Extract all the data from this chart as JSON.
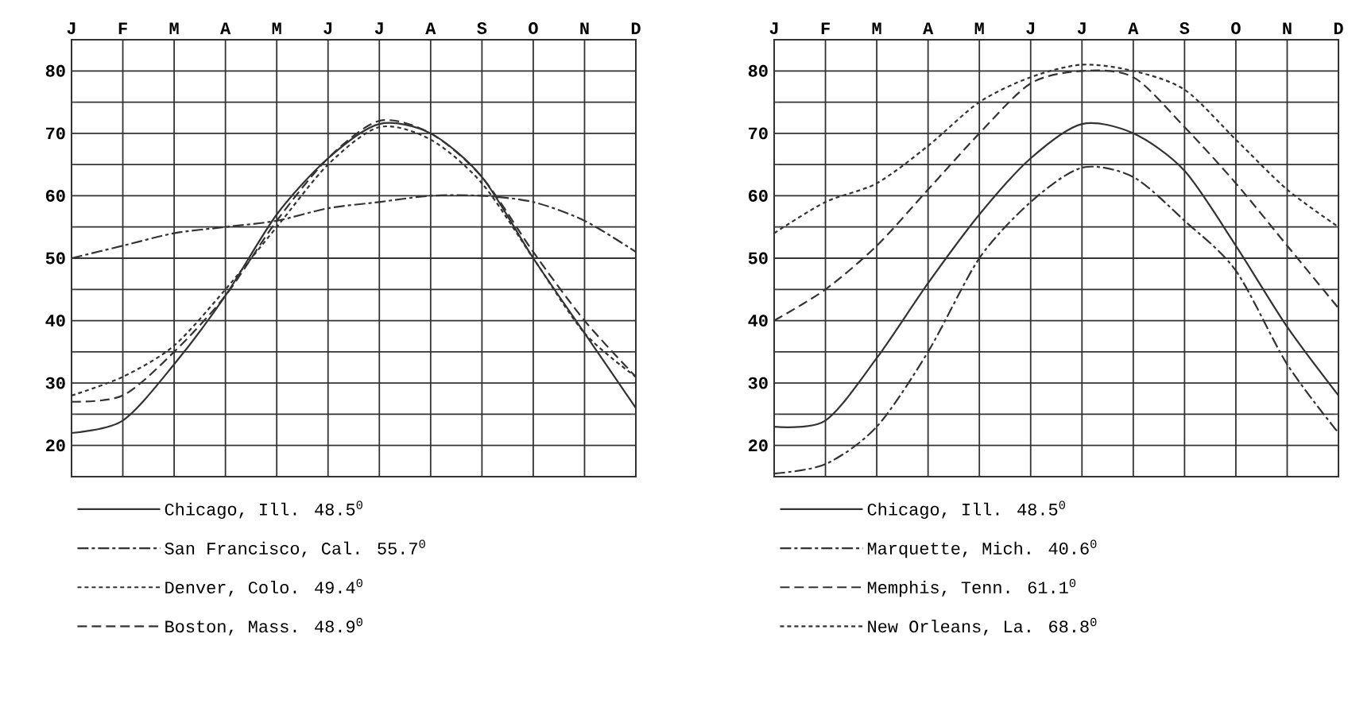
{
  "chart_data": [
    {
      "type": "line",
      "categories": [
        "J",
        "F",
        "M",
        "A",
        "M",
        "J",
        "J",
        "A",
        "S",
        "O",
        "N",
        "D"
      ],
      "ylim": [
        15,
        85
      ],
      "yticks": [
        20,
        30,
        40,
        50,
        60,
        70,
        80
      ],
      "grid": true,
      "legend": "bottom",
      "series": [
        {
          "name": "Chicago, Ill.  48.5$^{0}$",
          "color": "#333333",
          "line_style": "solid",
          "values": [
            22,
            24,
            33,
            44,
            57,
            66,
            71.5,
            70,
            63,
            50,
            38,
            26
          ]
        },
        {
          "name": "San Francisco, Cal. 55.7$^{0}$",
          "color": "#333333",
          "line_style": "dashdot",
          "values": [
            50,
            52,
            54,
            55,
            56,
            58,
            59,
            60,
            60,
            59,
            56,
            51
          ]
        },
        {
          "name": "Denver, Colo.  49.4$^{0}$",
          "color": "#333333",
          "line_style": "dotted",
          "values": [
            28,
            31,
            36,
            45,
            55,
            65,
            71,
            69,
            62,
            50,
            38,
            31
          ]
        },
        {
          "name": "Boston, Mass.  48.9$^{0}$",
          "color": "#333333",
          "line_style": "dashed",
          "values": [
            27,
            28,
            35,
            44,
            56,
            66,
            72,
            70,
            63,
            51,
            40,
            31
          ]
        }
      ]
    },
    {
      "type": "line",
      "categories": [
        "J",
        "F",
        "M",
        "A",
        "M",
        "J",
        "J",
        "A",
        "S",
        "O",
        "N",
        "D"
      ],
      "ylim": [
        15,
        85
      ],
      "yticks": [
        20,
        30,
        40,
        50,
        60,
        70,
        80
      ],
      "grid": true,
      "legend": "bottom",
      "series": [
        {
          "name": "Chicago, Ill.  48.5$^{0}$",
          "color": "#333333",
          "line_style": "solid",
          "values": [
            23,
            24,
            34,
            46,
            57,
            66,
            71.5,
            70,
            64,
            52,
            39,
            28
          ]
        },
        {
          "name": "Marquette, Mich. 40.6$^{0}$",
          "color": "#333333",
          "line_style": "dashdot",
          "values": [
            15.5,
            17,
            23,
            35,
            50,
            59,
            64.5,
            63,
            56,
            48,
            33,
            22
          ]
        },
        {
          "name": "Memphis, Tenn. 61.1$^{0}$",
          "color": "#333333",
          "line_style": "dashed",
          "values": [
            40,
            45,
            52,
            61,
            70,
            78,
            80,
            79,
            71,
            62,
            52,
            42
          ]
        },
        {
          "name": "New Orleans, La. 68.8$^{0}$",
          "color": "#333333",
          "line_style": "dotted",
          "values": [
            54,
            59,
            62,
            68,
            75,
            79,
            81,
            80,
            77,
            69,
            61,
            55
          ]
        }
      ]
    }
  ]
}
